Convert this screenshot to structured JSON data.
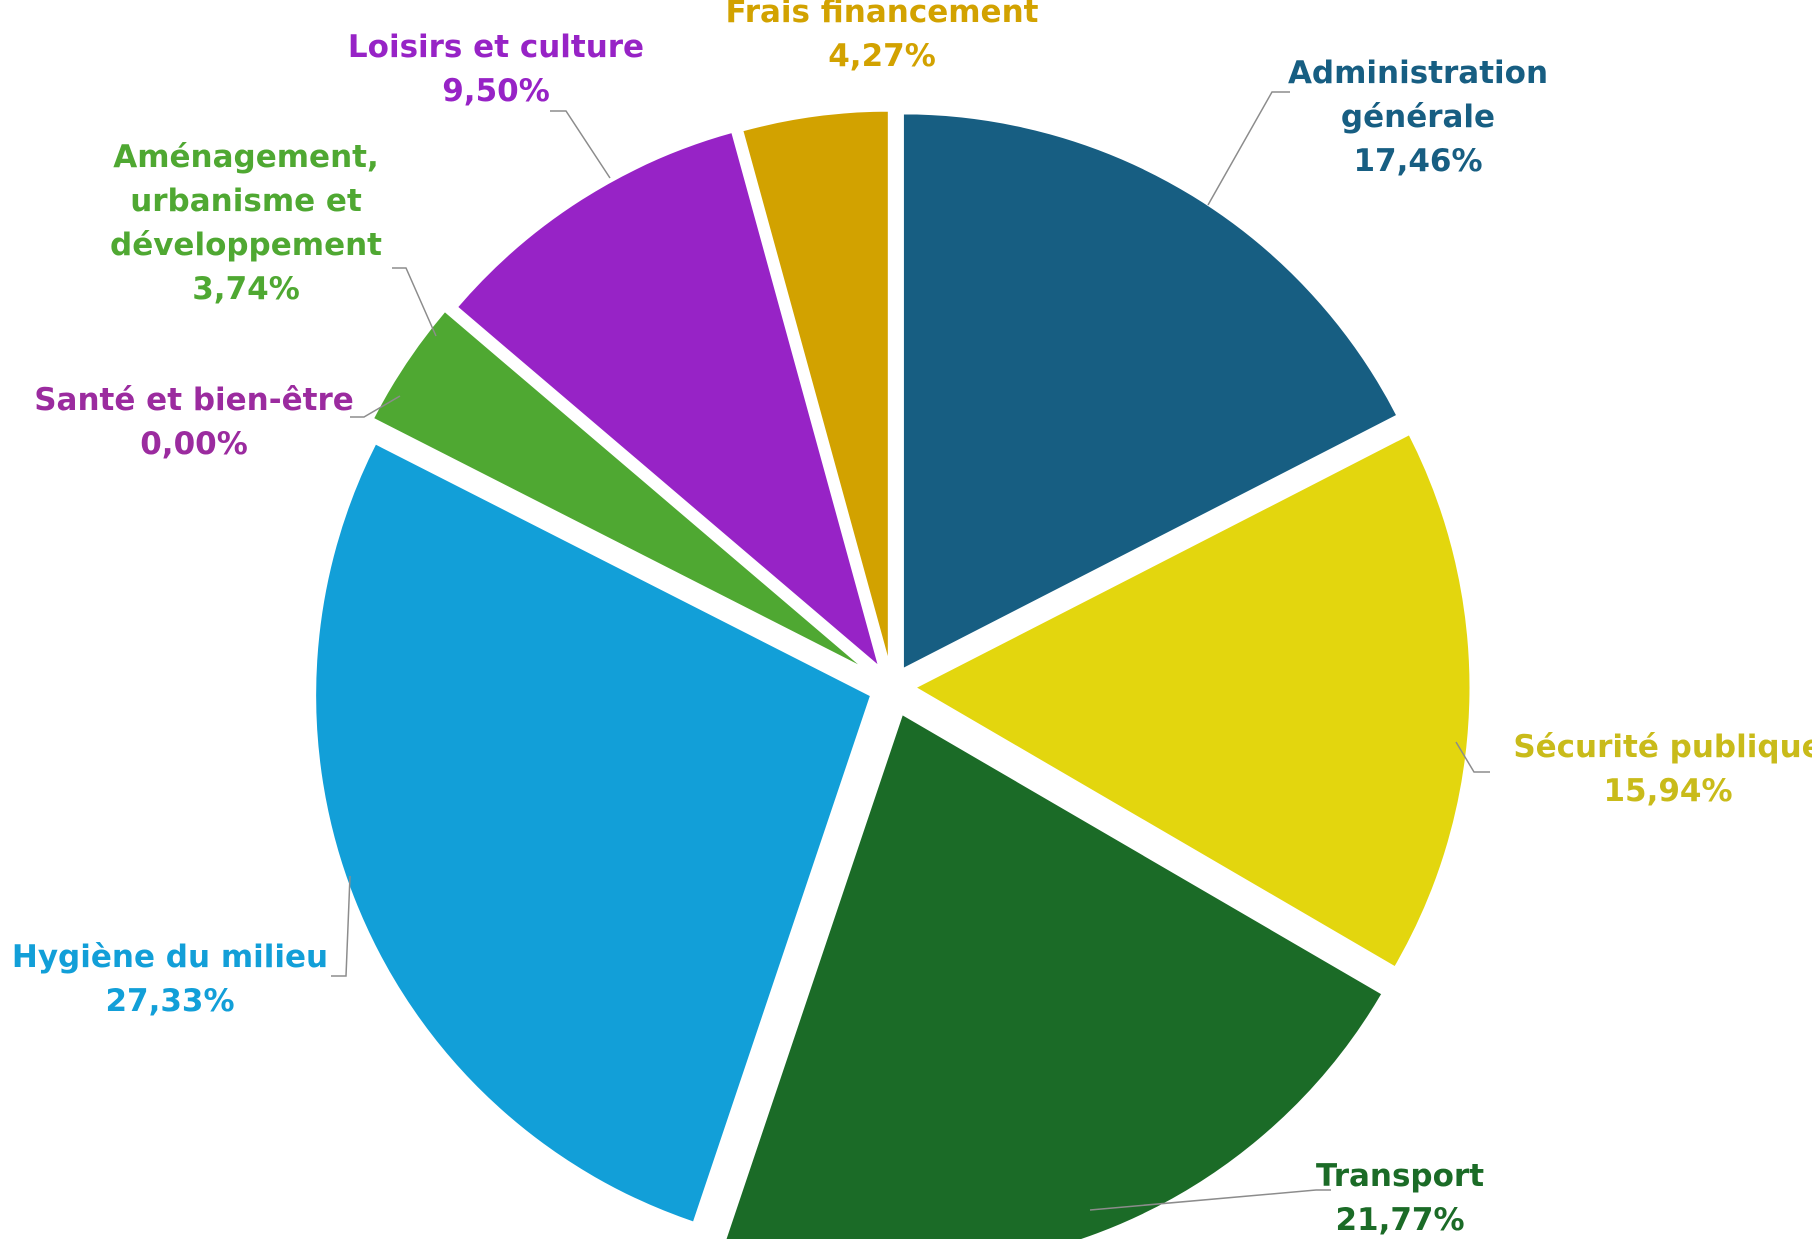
{
  "chart_data": {
    "type": "pie",
    "title": "",
    "start_angle_deg": 0,
    "direction": "clockwise",
    "slices": [
      {
        "name": "Administration générale",
        "label_lines": [
          "Administration",
          "générale"
        ],
        "value": 17.46,
        "value_label": "17,46%",
        "color": "#175e82",
        "label_color": "#175e82"
      },
      {
        "name": "Sécurité publique",
        "label_lines": [
          "Sécurité publique"
        ],
        "value": 15.94,
        "value_label": "15,94%",
        "color": "#e3d60e",
        "label_color": "#c9bb1a"
      },
      {
        "name": "Transport",
        "label_lines": [
          "Transport"
        ],
        "value": 21.77,
        "value_label": "21,77%",
        "color": "#1b6b27",
        "label_color": "#1b6b27"
      },
      {
        "name": "Hygiène du milieu",
        "label_lines": [
          "Hygiène du milieu"
        ],
        "value": 27.33,
        "value_label": "27,33%",
        "color": "#129fd8",
        "label_color": "#129fd8"
      },
      {
        "name": "Santé et bien-être",
        "label_lines": [
          "Santé et bien-être"
        ],
        "value": 0.0,
        "value_label": "0,00%",
        "color": "#9b2b9f",
        "label_color": "#9b2b9f"
      },
      {
        "name": "Aménagement, urbanisme et développement",
        "label_lines": [
          "Aménagement,",
          "urbanisme et",
          "développement"
        ],
        "value": 3.74,
        "value_label": "3,74%",
        "color": "#4fa832",
        "label_color": "#4fa832"
      },
      {
        "name": "Loisirs et culture",
        "label_lines": [
          "Loisirs et culture"
        ],
        "value": 9.5,
        "value_label": "9,50%",
        "color": "#9723c6",
        "label_color": "#9723c6"
      },
      {
        "name": "Frais financement",
        "label_lines": [
          "Frais financement"
        ],
        "value": 4.27,
        "value_label": "4,27%",
        "color": "#d2a200",
        "label_color": "#d2a200"
      }
    ]
  }
}
